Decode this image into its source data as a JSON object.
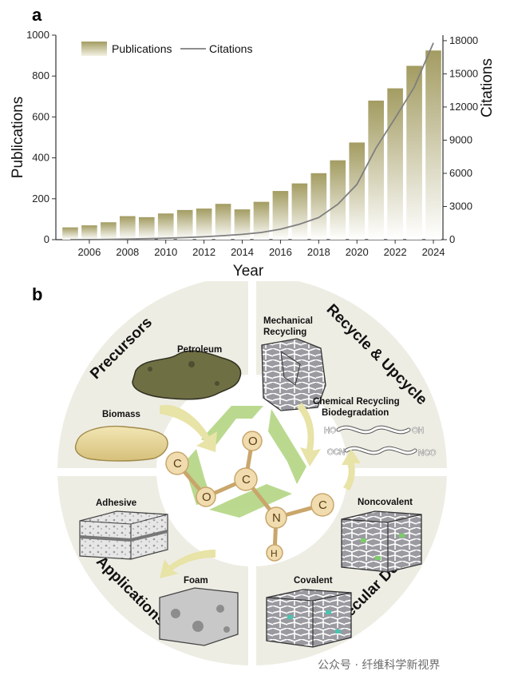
{
  "panel_a": {
    "letter": "a"
  },
  "panel_b": {
    "letter": "b"
  },
  "chart_data": {
    "type": "bar",
    "categories": [
      "2005",
      "2006",
      "2007",
      "2008",
      "2009",
      "2010",
      "2011",
      "2012",
      "2013",
      "2014",
      "2015",
      "2016",
      "2017",
      "2018",
      "2019",
      "2020",
      "2021",
      "2022",
      "2023",
      "2024"
    ],
    "x_tick_labels": [
      "2006",
      "2008",
      "2010",
      "2012",
      "2014",
      "2016",
      "2018",
      "2020",
      "2022",
      "2024"
    ],
    "series": [
      {
        "name": "Publications",
        "kind": "bar",
        "axis": "left",
        "values": [
          60,
          70,
          85,
          115,
          110,
          128,
          145,
          152,
          175,
          148,
          185,
          238,
          275,
          325,
          388,
          475,
          680,
          740,
          850,
          925
        ]
      },
      {
        "name": "Citations",
        "kind": "line",
        "axis": "right",
        "values": [
          0,
          10,
          25,
          55,
          85,
          130,
          190,
          260,
          360,
          480,
          650,
          950,
          1400,
          2000,
          3200,
          5000,
          8300,
          11000,
          13800,
          17800
        ]
      }
    ],
    "xlabel": "Year",
    "ylabel_left": "Publications",
    "ylabel_right": "Citations",
    "ylim_left": [
      0,
      1000
    ],
    "ylim_right": [
      0,
      18500
    ],
    "yticks_left": [
      0,
      200,
      400,
      600,
      800,
      1000
    ],
    "yticks_right": [
      0,
      3000,
      6000,
      9000,
      12000,
      15000,
      18000
    ],
    "legend_position": "top-left",
    "grid": false,
    "colors": {
      "bar_top": "#a39c62",
      "bar_bottom": "#ffffff",
      "line": "#7f7f7f"
    }
  },
  "diagram": {
    "sectors": {
      "precursors": "Precursors",
      "recycle": "Recycle & Upcycle",
      "molecular_design": "Molecular Design",
      "applications": "Applications"
    },
    "items": {
      "petroleum": "Petroleum",
      "biomass": "Biomass",
      "mechanical_recycling_line1": "Mechanical",
      "mechanical_recycling_line2": "Recycling",
      "chemical_recycling": "Chemical Recycling",
      "biodegradation": "Biodegradation",
      "noncovalent": "Noncovalent",
      "covalent": "Covalent",
      "adhesive": "Adhesive",
      "foam": "Foam"
    },
    "chain_labels": {
      "ho": "HO",
      "oh": "OH",
      "ocn": "OCN",
      "nco": "NCO"
    },
    "atoms": {
      "c_left": "C",
      "o_ester": "O",
      "c_center": "C",
      "o_carbonyl": "O",
      "n": "N",
      "c_right": "C",
      "h": "H"
    },
    "colors": {
      "sector_fill": "#eeede4",
      "arrow_green": "#b7d88a",
      "arrow_yellow": "#e8e3a6",
      "atom_fill": "#f0dcae",
      "atom_stroke": "#c9a66b"
    }
  },
  "watermark": "公众号 · 纤维科学新视界"
}
